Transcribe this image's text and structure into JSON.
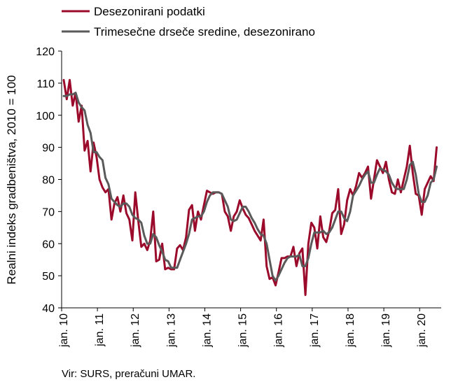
{
  "source": "Vir: SURS, preračuni UMAR.",
  "chart_data": {
    "type": "line",
    "title": "",
    "ylabel": "Realni indeks gradbeništva, 2010 = 100",
    "xlabel": "",
    "ylim": [
      40,
      120
    ],
    "yticks": [
      40,
      50,
      60,
      70,
      80,
      90,
      100,
      110,
      120
    ],
    "x_start": "2010-01",
    "x_tick_labels": [
      "jan. 10",
      "jan. 11",
      "jan. 12",
      "jan. 13",
      "jan. 14",
      "jan. 15",
      "jan. 16",
      "jan. 17",
      "jan. 18",
      "jan. 19",
      "jan. 20"
    ],
    "legend_position": "top-left",
    "grid": false,
    "series": [
      {
        "name": "Desezonirani podatki",
        "color": "#9b0a2a",
        "values": [
          111,
          105,
          111,
          103,
          107,
          98,
          103,
          89,
          92,
          82.5,
          91.5,
          87,
          80,
          77.5,
          76,
          77,
          67.5,
          72.5,
          74.5,
          70,
          75,
          69.5,
          67.5,
          61,
          76,
          67,
          59,
          60,
          58,
          61,
          70,
          54.5,
          55,
          60,
          52,
          52.5,
          52,
          52,
          58.5,
          59.5,
          58,
          62,
          70.5,
          72,
          64,
          70,
          67.5,
          72,
          76.5,
          76,
          75.5,
          76,
          76,
          75.5,
          70,
          68.5,
          64,
          68.5,
          70,
          73.5,
          71,
          69,
          68,
          66,
          64,
          62.5,
          61,
          67.5,
          53,
          49,
          49.5,
          47,
          51,
          55.5,
          55.5,
          56,
          56,
          59,
          53,
          57,
          58.5,
          44,
          60,
          66.5,
          65,
          58.5,
          68.5,
          62,
          60.5,
          64,
          69.5,
          70.5,
          77,
          63,
          66,
          73.5,
          77,
          75,
          78,
          82,
          80.5,
          82,
          84,
          74,
          80,
          86,
          84,
          82,
          85.5,
          80,
          76,
          75.5,
          80,
          76,
          80,
          84,
          90.5,
          82,
          75.5,
          75,
          69,
          77,
          79,
          81,
          79.5,
          90
        ]
      },
      {
        "name": "Trimesečne drseče sredine, desezonirano",
        "color": "#5a5a5a",
        "values": [
          106,
          106,
          106.5,
          106.5,
          107,
          104,
          102.5,
          101.5,
          97,
          94.5,
          88.5,
          88.5,
          87,
          86,
          80.5,
          78.5,
          74,
          73,
          72,
          71.5,
          72.5,
          72.5,
          71.5,
          69,
          68,
          67.5,
          66.5,
          62.5,
          60,
          60,
          63,
          62,
          59.5,
          57.5,
          55,
          54.5,
          52.5,
          52.5,
          52.5,
          55,
          57.5,
          60,
          63,
          67.5,
          68,
          68.5,
          68.5,
          70,
          73,
          75,
          76,
          76,
          76,
          75.5,
          73.5,
          71.5,
          67.5,
          67,
          67.5,
          69.5,
          71.5,
          71.5,
          70,
          68,
          66.5,
          64.5,
          63,
          62.5,
          60,
          55,
          50,
          48.5,
          50,
          52,
          54,
          55.5,
          56,
          56,
          56,
          56.5,
          53,
          53,
          55.5,
          60,
          63.5,
          63.5,
          63.5,
          64,
          63,
          63.5,
          65,
          67.5,
          70,
          70,
          68,
          67,
          70,
          75,
          76.5,
          78,
          80,
          81.5,
          82.5,
          79,
          79,
          81.5,
          83.5,
          83,
          82.5,
          81.5,
          79,
          77.5,
          77,
          77,
          77,
          80,
          84.5,
          85.5,
          81.5,
          75.5,
          73,
          73,
          75,
          79,
          80,
          84
        ]
      }
    ]
  }
}
